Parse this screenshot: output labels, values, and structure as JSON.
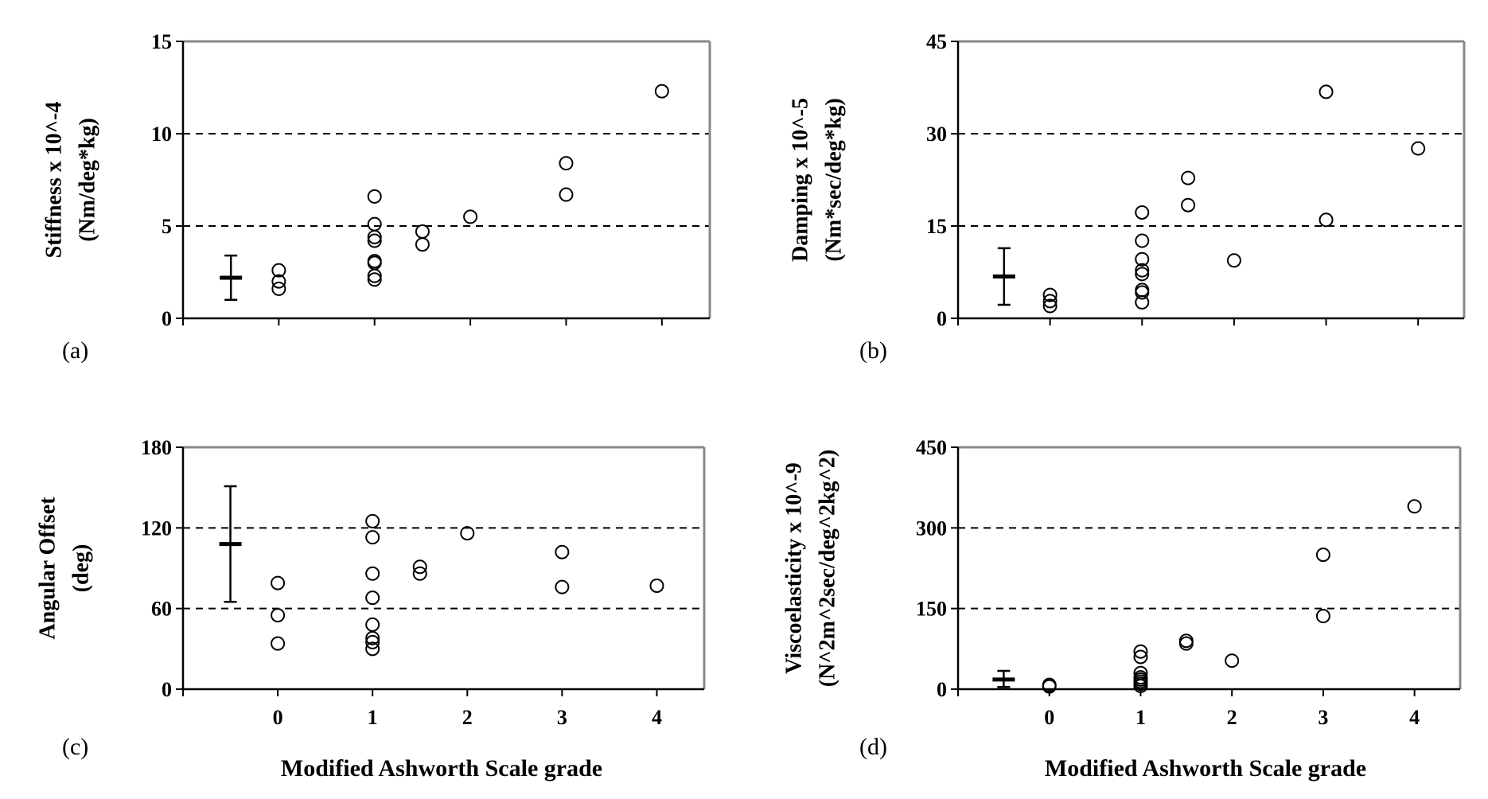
{
  "figure": {
    "xlabel_shared": "Modified Ashworth Scale grade"
  },
  "chart_data": [
    {
      "type": "scatter",
      "panel_label": "(a)",
      "ylabel_lines": [
        "Stiffness x 10^-4",
        "(Nm/deg*kg)"
      ],
      "ylim": [
        0,
        15
      ],
      "yticks": [
        0,
        5,
        10,
        15
      ],
      "xlim": [
        -1,
        4.5
      ],
      "xticks": [
        0,
        1,
        2,
        3,
        4
      ],
      "xtick_labels": [],
      "dashed_lines": [
        5,
        10
      ],
      "reference": {
        "x": -0.5,
        "mean": 2.2,
        "low": 1.0,
        "high": 3.4
      },
      "points": [
        [
          0,
          2.6
        ],
        [
          0,
          2.0
        ],
        [
          0,
          1.6
        ],
        [
          1,
          6.6
        ],
        [
          1,
          5.1
        ],
        [
          1,
          4.4
        ],
        [
          1,
          4.2
        ],
        [
          1,
          3.1
        ],
        [
          1,
          3.0
        ],
        [
          1,
          2.3
        ],
        [
          1,
          2.1
        ],
        [
          1.5,
          4.7
        ],
        [
          1.5,
          4.0
        ],
        [
          2,
          5.5
        ],
        [
          3,
          8.4
        ],
        [
          3,
          6.7
        ],
        [
          4,
          12.3
        ]
      ],
      "grid": false
    },
    {
      "type": "scatter",
      "panel_label": "(b)",
      "ylabel_lines": [
        "Damping x 10^-5",
        "(Nm*sec/deg*kg)"
      ],
      "ylim": [
        0,
        45
      ],
      "yticks": [
        0,
        15,
        30,
        45
      ],
      "xlim": [
        -1,
        4.5
      ],
      "xticks": [
        0,
        1,
        2,
        3,
        4
      ],
      "xtick_labels": [],
      "dashed_lines": [
        15,
        30
      ],
      "reference": {
        "x": -0.5,
        "mean": 6.8,
        "low": 2.2,
        "high": 11.4
      },
      "points": [
        [
          0,
          3.8
        ],
        [
          0,
          2.8
        ],
        [
          0,
          2.0
        ],
        [
          1,
          17.2
        ],
        [
          1,
          12.6
        ],
        [
          1,
          9.6
        ],
        [
          1,
          7.8
        ],
        [
          1,
          7.2
        ],
        [
          1,
          4.6
        ],
        [
          1,
          4.2
        ],
        [
          1,
          2.6
        ],
        [
          1.5,
          22.8
        ],
        [
          1.5,
          18.4
        ],
        [
          2,
          9.4
        ],
        [
          3,
          36.8
        ],
        [
          3,
          16.0
        ],
        [
          4,
          27.6
        ]
      ],
      "grid": false
    },
    {
      "type": "scatter",
      "panel_label": "(c)",
      "ylabel_lines": [
        "Angular Offset",
        "(deg)"
      ],
      "ylim": [
        0,
        180
      ],
      "yticks": [
        0,
        60,
        120,
        180
      ],
      "xlim": [
        -1,
        4.5
      ],
      "xticks": [
        0,
        1,
        2,
        3,
        4
      ],
      "xtick_labels": [
        "0",
        "1",
        "2",
        "3",
        "4"
      ],
      "dashed_lines": [
        60,
        120
      ],
      "reference": {
        "x": -0.5,
        "mean": 108,
        "low": 65,
        "high": 151
      },
      "points": [
        [
          0,
          79
        ],
        [
          0,
          55
        ],
        [
          0,
          34
        ],
        [
          1,
          125
        ],
        [
          1,
          113
        ],
        [
          1,
          86
        ],
        [
          1,
          68
        ],
        [
          1,
          48
        ],
        [
          1,
          38
        ],
        [
          1,
          35
        ],
        [
          1,
          30
        ],
        [
          1.5,
          91
        ],
        [
          1.5,
          86
        ],
        [
          2,
          116
        ],
        [
          3,
          102
        ],
        [
          3,
          76
        ],
        [
          4,
          77
        ]
      ],
      "grid": false
    },
    {
      "type": "scatter",
      "panel_label": "(d)",
      "ylabel_lines": [
        "Viscoelasticity x 10^-9",
        "(N^2m^2sec/deg^2kg^2)"
      ],
      "ylim": [
        0,
        450
      ],
      "yticks": [
        0,
        150,
        300,
        450
      ],
      "xlim": [
        -1,
        4.5
      ],
      "xticks": [
        0,
        1,
        2,
        3,
        4
      ],
      "xtick_labels": [
        "0",
        "1",
        "2",
        "3",
        "4"
      ],
      "dashed_lines": [
        150,
        300
      ],
      "reference": {
        "x": -0.5,
        "mean": 18,
        "low": 4,
        "high": 34
      },
      "points": [
        [
          0,
          8
        ],
        [
          0,
          5
        ],
        [
          1,
          70
        ],
        [
          1,
          60
        ],
        [
          1,
          30
        ],
        [
          1,
          22
        ],
        [
          1,
          18
        ],
        [
          1,
          14
        ],
        [
          1,
          10
        ],
        [
          1,
          6
        ],
        [
          1.5,
          90
        ],
        [
          1.5,
          85
        ],
        [
          2,
          53
        ],
        [
          3,
          250
        ],
        [
          3,
          136
        ],
        [
          4,
          340
        ]
      ],
      "grid": false
    }
  ]
}
